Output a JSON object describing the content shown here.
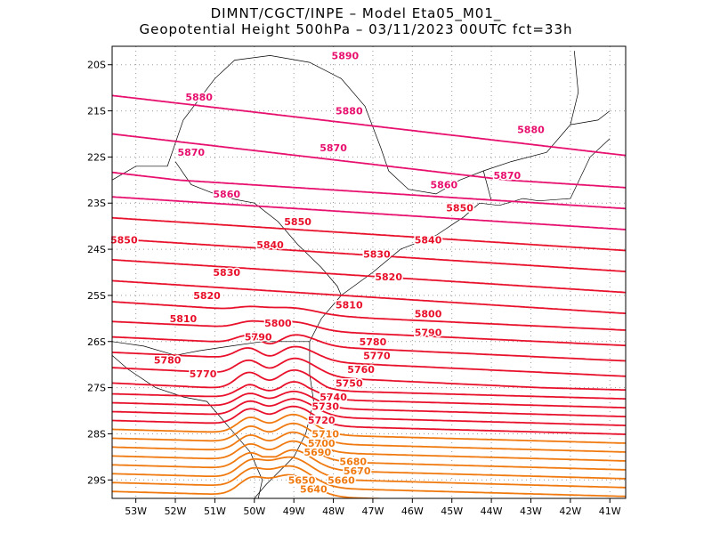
{
  "chart_data": {
    "type": "contour",
    "title_line1": "DIMNT/CGCT/INPE  –   Model Eta05_M01_",
    "title_line2": "Geopotential Height 500hPa –   03/11/2023 00UTC fct=33h",
    "xlabel": "",
    "ylabel": "",
    "xlim": [
      -53.6,
      -40.6
    ],
    "ylim": [
      -29.4,
      -19.6
    ],
    "x_ticks": [
      {
        "value": -53,
        "label": "53W"
      },
      {
        "value": -52,
        "label": "52W"
      },
      {
        "value": -51,
        "label": "51W"
      },
      {
        "value": -50,
        "label": "50W"
      },
      {
        "value": -49,
        "label": "49W"
      },
      {
        "value": -48,
        "label": "48W"
      },
      {
        "value": -47,
        "label": "47W"
      },
      {
        "value": -46,
        "label": "46W"
      },
      {
        "value": -45,
        "label": "45W"
      },
      {
        "value": -44,
        "label": "44W"
      },
      {
        "value": -43,
        "label": "43W"
      },
      {
        "value": -42,
        "label": "42W"
      },
      {
        "value": -41,
        "label": "41W"
      }
    ],
    "y_ticks": [
      {
        "value": -20,
        "label": "20S"
      },
      {
        "value": -21,
        "label": "21S"
      },
      {
        "value": -22,
        "label": "22S"
      },
      {
        "value": -23,
        "label": "23S"
      },
      {
        "value": -24,
        "label": "24S"
      },
      {
        "value": -25,
        "label": "25S"
      },
      {
        "value": -26,
        "label": "26S"
      },
      {
        "value": -27,
        "label": "27S"
      },
      {
        "value": -28,
        "label": "28S"
      },
      {
        "value": -29,
        "label": "29S"
      }
    ],
    "grid": true,
    "contour_levels": [
      5640,
      5650,
      5660,
      5670,
      5680,
      5690,
      5700,
      5710,
      5720,
      5730,
      5740,
      5750,
      5760,
      5770,
      5780,
      5790,
      5800,
      5810,
      5820,
      5830,
      5840,
      5850,
      5860,
      5870,
      5880,
      5890
    ],
    "contour_labels": [
      {
        "text": "5890",
        "lon": -47.7,
        "lat": -19.8,
        "level": 5890
      },
      {
        "text": "5880",
        "lon": -51.4,
        "lat": -20.7,
        "level": 5880
      },
      {
        "text": "5880",
        "lon": -47.6,
        "lat": -21.0,
        "level": 5880
      },
      {
        "text": "5880",
        "lon": -43.0,
        "lat": -21.4,
        "level": 5880
      },
      {
        "text": "5870",
        "lon": -51.6,
        "lat": -21.9,
        "level": 5870
      },
      {
        "text": "5870",
        "lon": -48.0,
        "lat": -21.8,
        "level": 5870
      },
      {
        "text": "5870",
        "lon": -43.6,
        "lat": -22.4,
        "level": 5870
      },
      {
        "text": "5860",
        "lon": -50.7,
        "lat": -22.8,
        "level": 5860
      },
      {
        "text": "5860",
        "lon": -45.2,
        "lat": -22.6,
        "level": 5860
      },
      {
        "text": "5850",
        "lon": -53.3,
        "lat": -23.8,
        "level": 5850
      },
      {
        "text": "5850",
        "lon": -48.9,
        "lat": -23.4,
        "level": 5850
      },
      {
        "text": "5850",
        "lon": -44.8,
        "lat": -23.1,
        "level": 5850
      },
      {
        "text": "5840",
        "lon": -49.6,
        "lat": -23.9,
        "level": 5840
      },
      {
        "text": "5840",
        "lon": -45.6,
        "lat": -23.8,
        "level": 5840
      },
      {
        "text": "5830",
        "lon": -50.7,
        "lat": -24.5,
        "level": 5830
      },
      {
        "text": "5830",
        "lon": -46.9,
        "lat": -24.1,
        "level": 5830
      },
      {
        "text": "5820",
        "lon": -51.2,
        "lat": -25.0,
        "level": 5820
      },
      {
        "text": "5820",
        "lon": -46.6,
        "lat": -24.6,
        "level": 5820
      },
      {
        "text": "5810",
        "lon": -51.8,
        "lat": -25.5,
        "level": 5810
      },
      {
        "text": "5810",
        "lon": -47.6,
        "lat": -25.2,
        "level": 5810
      },
      {
        "text": "5800",
        "lon": -49.4,
        "lat": -25.6,
        "level": 5800
      },
      {
        "text": "5800",
        "lon": -45.6,
        "lat": -25.4,
        "level": 5800
      },
      {
        "text": "5790",
        "lon": -49.9,
        "lat": -25.9,
        "level": 5790
      },
      {
        "text": "5790",
        "lon": -45.6,
        "lat": -25.8,
        "level": 5790
      },
      {
        "text": "5780",
        "lon": -52.2,
        "lat": -26.4,
        "level": 5780
      },
      {
        "text": "5780",
        "lon": -47.0,
        "lat": -26.0,
        "level": 5780
      },
      {
        "text": "5770",
        "lon": -51.3,
        "lat": -26.7,
        "level": 5770
      },
      {
        "text": "5770",
        "lon": -46.9,
        "lat": -26.3,
        "level": 5770
      },
      {
        "text": "5760",
        "lon": -47.3,
        "lat": -26.6,
        "level": 5760
      },
      {
        "text": "5750",
        "lon": -47.6,
        "lat": -26.9,
        "level": 5750
      },
      {
        "text": "5740",
        "lon": -48.0,
        "lat": -27.2,
        "level": 5740
      },
      {
        "text": "5730",
        "lon": -48.2,
        "lat": -27.4,
        "level": 5730
      },
      {
        "text": "5720",
        "lon": -48.3,
        "lat": -27.7,
        "level": 5720
      },
      {
        "text": "5710",
        "lon": -48.2,
        "lat": -28.0,
        "level": 5710
      },
      {
        "text": "5700",
        "lon": -48.3,
        "lat": -28.2,
        "level": 5700
      },
      {
        "text": "5690",
        "lon": -48.4,
        "lat": -28.4,
        "level": 5690
      },
      {
        "text": "5680",
        "lon": -47.5,
        "lat": -28.6,
        "level": 5680
      },
      {
        "text": "5670",
        "lon": -47.4,
        "lat": -28.8,
        "level": 5670
      },
      {
        "text": "5660",
        "lon": -47.8,
        "lat": -29.0,
        "level": 5660
      },
      {
        "text": "5650",
        "lon": -48.8,
        "lat": -29.0,
        "level": 5650
      },
      {
        "text": "5640",
        "lon": -48.5,
        "lat": -29.2,
        "level": 5640
      }
    ],
    "colors": {
      "high": "#e8106e",
      "mid": "#e8102a",
      "low": "#f07a10",
      "coastline": "#000000",
      "grid": "#9a9a9a"
    }
  }
}
